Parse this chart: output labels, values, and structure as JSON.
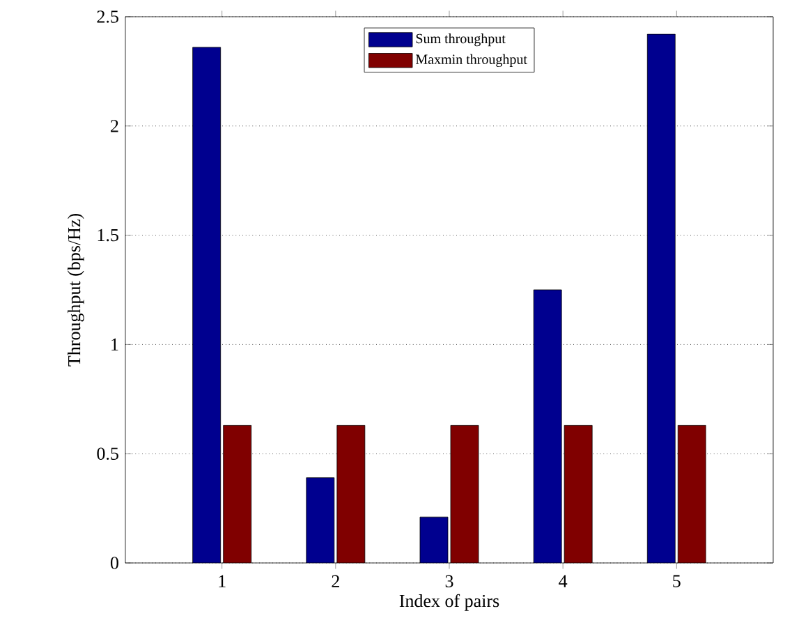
{
  "chart_data": {
    "type": "bar",
    "xlabel": "Index of pairs",
    "ylabel": "Throughput  (bps/Hz)",
    "categories": [
      "1",
      "2",
      "3",
      "4",
      "5"
    ],
    "series": [
      {
        "name": "Sum throughput",
        "color": "#00008f",
        "values": [
          2.36,
          0.39,
          0.21,
          1.25,
          2.42
        ]
      },
      {
        "name": "Maxmin throughput",
        "color": "#800000",
        "values": [
          0.63,
          0.63,
          0.63,
          0.63,
          0.63
        ]
      }
    ],
    "ylim": [
      0,
      2.5
    ],
    "yticks": [
      0,
      0.5,
      1,
      1.5,
      2,
      2.5
    ],
    "grid": "y",
    "legend": "top"
  }
}
